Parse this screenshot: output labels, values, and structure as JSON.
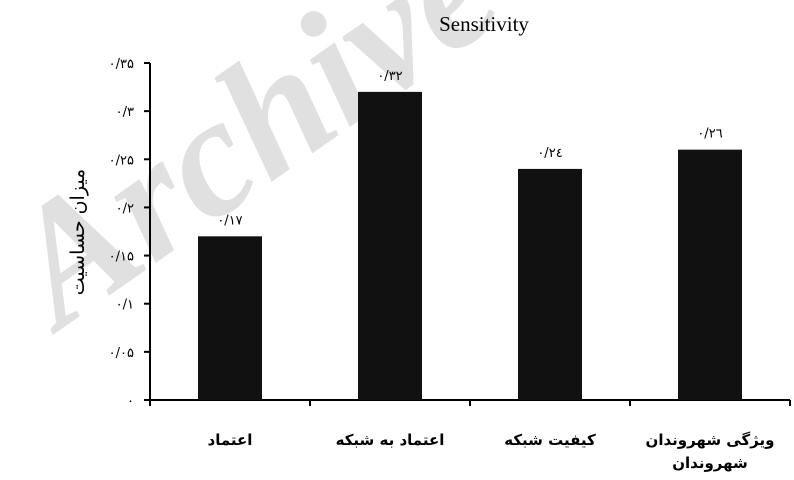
{
  "watermark": "Archive",
  "chart_data": {
    "type": "bar",
    "title": "Sensitivity",
    "ylabel": "میزان حساسیت",
    "xlabel": "",
    "categories": [
      "اعتماد",
      "اعتماد به شبکه",
      "کیفیت شبکه",
      "ویژگی شهروندان شهروندان"
    ],
    "category_lines": [
      [
        "اعتماد"
      ],
      [
        "اعتماد به شبکه"
      ],
      [
        "کیفیت شبکه"
      ],
      [
        "ویژگی شهروندان",
        "شهروندان"
      ]
    ],
    "values": [
      0.17,
      0.32,
      0.24,
      0.26
    ],
    "data_labels": [
      "۰/۱۷",
      "۰/۳۲",
      "۰/۲٤",
      "۰/۲٦"
    ],
    "ylim": [
      0,
      0.35
    ],
    "yticks": [
      0,
      0.05,
      0.1,
      0.15,
      0.2,
      0.25,
      0.3,
      0.35
    ],
    "ytick_labels": [
      "۰",
      "۰/۰۵",
      "۰/۱",
      "۰/۱۵",
      "۰/۲",
      "۰/۲۵",
      "۰/۳",
      "۰/۳۵"
    ],
    "bar_color": "#111111",
    "grid": false,
    "legend": "none"
  }
}
